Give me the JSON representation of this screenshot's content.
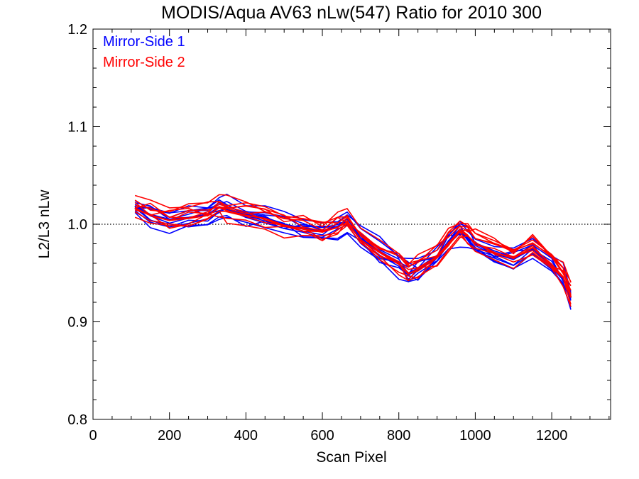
{
  "chart_data": {
    "type": "line",
    "title": "MODIS/Aqua AV63 nLw(547) Ratio for 2010 300",
    "xlabel": "Scan Pixel",
    "ylabel": "L2/L3 nLw",
    "xlim": [
      0,
      1354
    ],
    "ylim": [
      0.8,
      1.2
    ],
    "x_major_ticks": [
      0,
      200,
      400,
      600,
      800,
      1000,
      1200
    ],
    "x_minor_step": 50,
    "y_major_ticks": [
      0.8,
      0.9,
      1.0,
      1.1,
      1.2
    ],
    "y_tick_labels": [
      "0.8",
      "0.9",
      "1.0",
      "1.1",
      "1.2"
    ],
    "y_minor_step": 0.02,
    "reference_line": {
      "y": 1.0,
      "style": "dotted"
    },
    "grid": false,
    "legend_position": "top-left",
    "x": [
      110,
      150,
      200,
      250,
      300,
      330,
      350,
      400,
      450,
      500,
      550,
      600,
      640,
      665,
      700,
      750,
      800,
      825,
      850,
      900,
      930,
      960,
      980,
      1000,
      1050,
      1100,
      1150,
      1200,
      1230,
      1250
    ],
    "series": [
      {
        "name": "Mirror-Side 1",
        "color": "#0000ff",
        "values": [
          1.018,
          1.01,
          1.005,
          1.007,
          1.01,
          1.018,
          1.015,
          1.01,
          1.007,
          1.0,
          0.996,
          0.993,
          0.998,
          1.003,
          0.985,
          0.972,
          0.96,
          0.95,
          0.955,
          0.968,
          0.982,
          0.992,
          0.987,
          0.98,
          0.97,
          0.964,
          0.975,
          0.958,
          0.945,
          0.925
        ]
      },
      {
        "name": "Mirror-Side 2",
        "color": "#ff0000",
        "values": [
          1.016,
          1.009,
          1.004,
          1.006,
          1.009,
          1.017,
          1.014,
          1.009,
          1.006,
          0.999,
          0.995,
          0.992,
          0.997,
          1.002,
          0.984,
          0.971,
          0.959,
          0.949,
          0.954,
          0.967,
          0.981,
          0.993,
          0.988,
          0.981,
          0.971,
          0.965,
          0.976,
          0.959,
          0.946,
          0.926
        ]
      }
    ]
  }
}
